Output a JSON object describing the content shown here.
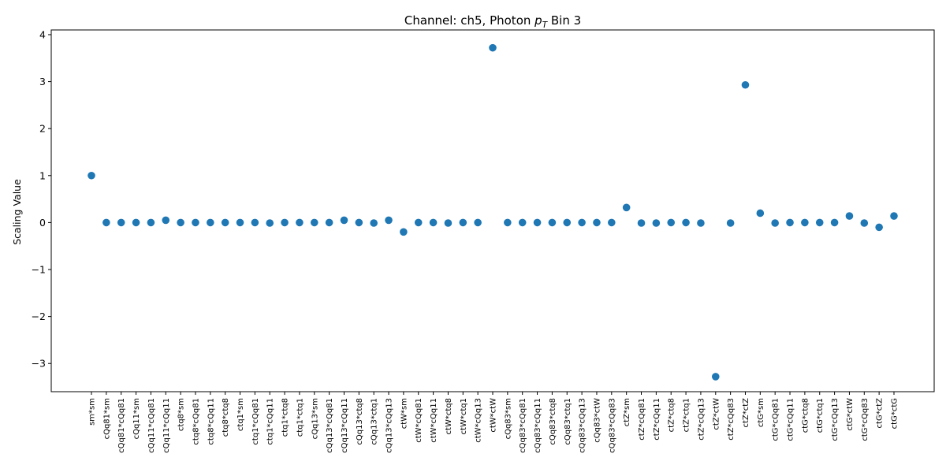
{
  "chart_data": {
    "type": "scatter",
    "title_prefix": "Channel: ch5, Photon ",
    "title_math_base": "p",
    "title_math_sub": "T",
    "title_suffix": " Bin 3",
    "xlabel": "",
    "ylabel": "Scaling Value",
    "ylim": [
      -3.6,
      4.1
    ],
    "yticks": [
      -3,
      -2,
      -1,
      0,
      1,
      2,
      3,
      4
    ],
    "ytick_labels": [
      "−3",
      "−2",
      "−1",
      "0",
      "1",
      "2",
      "3",
      "4"
    ],
    "grid": false,
    "marker_color": "#1f77b4",
    "categories": [
      "sm*sm",
      "cQq81*sm",
      "cQq81*cQq81",
      "cQq11*sm",
      "cQq11*cQq81",
      "cQq11*cQq11",
      "ctq8*sm",
      "ctq8*cQq81",
      "ctq8*cQq11",
      "ctq8*ctq8",
      "ctq1*sm",
      "ctq1*cQq81",
      "ctq1*cQq11",
      "ctq1*ctq8",
      "ctq1*ctq1",
      "cQq13*sm",
      "cQq13*cQq81",
      "cQq13*cQq11",
      "cQq13*ctq8",
      "cQq13*ctq1",
      "cQq13*cQq13",
      "ctW*sm",
      "ctW*cQq81",
      "ctW*cQq11",
      "ctW*ctq8",
      "ctW*ctq1",
      "ctW*cQq13",
      "ctW*ctW",
      "cQq83*sm",
      "cQq83*cQq81",
      "cQq83*cQq11",
      "cQq83*ctq8",
      "cQq83*ctq1",
      "cQq83*cQq13",
      "cQq83*ctW",
      "cQq83*cQq83",
      "ctZ*sm",
      "ctZ*cQq81",
      "ctZ*cQq11",
      "ctZ*ctq8",
      "ctZ*ctq1",
      "ctZ*cQq13",
      "ctZ*ctW",
      "ctZ*cQq83",
      "ctZ*ctZ",
      "ctG*sm",
      "ctG*cQq81",
      "ctG*cQq11",
      "ctG*ctq8",
      "ctG*ctq1",
      "ctG*cQq13",
      "ctG*ctW",
      "ctG*cQq83",
      "ctG*ctZ",
      "ctG*ctG"
    ],
    "values": [
      1.0,
      0.0,
      0.0,
      0.0,
      0.0,
      0.05,
      0.0,
      0.0,
      0.0,
      0.0,
      0.0,
      0.0,
      -0.01,
      0.0,
      0.0,
      0.0,
      0.0,
      0.05,
      0.0,
      -0.01,
      0.05,
      -0.2,
      0.0,
      0.0,
      -0.01,
      0.0,
      0.0,
      3.72,
      0.0,
      0.0,
      0.0,
      0.0,
      0.0,
      0.0,
      0.0,
      0.0,
      0.32,
      -0.01,
      -0.01,
      0.0,
      0.0,
      -0.01,
      -3.28,
      -0.01,
      2.93,
      0.2,
      -0.01,
      0.0,
      0.0,
      0.0,
      0.0,
      0.14,
      -0.01,
      -0.1,
      0.14
    ]
  }
}
